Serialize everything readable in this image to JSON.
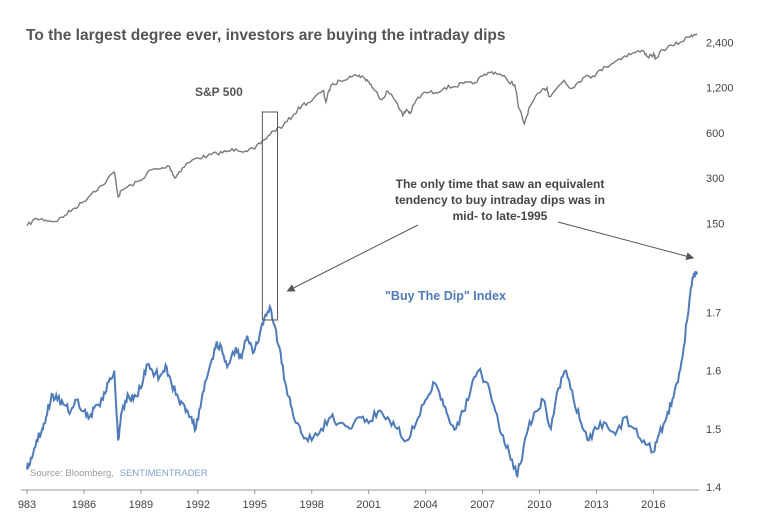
{
  "chart_data": {
    "type": "line",
    "title": "To the largest degree ever, investors are buying the intraday dips",
    "source": "Source: Bloomberg,",
    "source_brand": "SENTIMENTRADER",
    "x_ticks": [
      "983",
      "1986",
      "1989",
      "1992",
      "1995",
      "1998",
      "2001",
      "2004",
      "2007",
      "2010",
      "2013",
      "2016"
    ],
    "x_range": [
      1983,
      2018.3
    ],
    "colors": {
      "sp500": "#7a7a7a",
      "index": "#4f7bb8",
      "axis": "#999999"
    },
    "sp500": {
      "label": "S&P 500",
      "scale": "log",
      "ylim": [
        100,
        2900
      ],
      "ticks": [
        {
          "v": 2400,
          "t": "2,400"
        },
        {
          "v": 1200,
          "t": "1,200"
        },
        {
          "v": 600,
          "t": "600"
        },
        {
          "v": 300,
          "t": "300"
        },
        {
          "v": 150,
          "t": "150"
        }
      ],
      "points": [
        [
          1983.0,
          145
        ],
        [
          1983.5,
          162
        ],
        [
          1984.0,
          158
        ],
        [
          1984.5,
          155
        ],
        [
          1985.0,
          170
        ],
        [
          1985.5,
          190
        ],
        [
          1986.0,
          210
        ],
        [
          1986.5,
          245
        ],
        [
          1987.0,
          270
        ],
        [
          1987.6,
          330
        ],
        [
          1987.8,
          225
        ],
        [
          1988.0,
          250
        ],
        [
          1988.5,
          270
        ],
        [
          1989.0,
          290
        ],
        [
          1989.5,
          340
        ],
        [
          1990.0,
          345
        ],
        [
          1990.5,
          360
        ],
        [
          1990.8,
          300
        ],
        [
          1991.0,
          330
        ],
        [
          1991.5,
          380
        ],
        [
          1992.0,
          410
        ],
        [
          1992.5,
          420
        ],
        [
          1993.0,
          440
        ],
        [
          1993.5,
          450
        ],
        [
          1994.0,
          470
        ],
        [
          1994.5,
          455
        ],
        [
          1995.0,
          470
        ],
        [
          1995.5,
          540
        ],
        [
          1996.0,
          620
        ],
        [
          1996.5,
          670
        ],
        [
          1997.0,
          780
        ],
        [
          1997.5,
          920
        ],
        [
          1998.0,
          980
        ],
        [
          1998.6,
          1150
        ],
        [
          1998.75,
          960
        ],
        [
          1999.0,
          1230
        ],
        [
          1999.5,
          1330
        ],
        [
          2000.0,
          1430
        ],
        [
          2000.5,
          1450
        ],
        [
          2000.8,
          1380
        ],
        [
          2001.0,
          1320
        ],
        [
          2001.3,
          1150
        ],
        [
          2001.7,
          1000
        ],
        [
          2002.0,
          1140
        ],
        [
          2002.5,
          950
        ],
        [
          2002.8,
          780
        ],
        [
          2003.0,
          860
        ],
        [
          2003.2,
          810
        ],
        [
          2003.5,
          990
        ],
        [
          2004.0,
          1120
        ],
        [
          2004.5,
          1110
        ],
        [
          2005.0,
          1200
        ],
        [
          2005.5,
          1220
        ],
        [
          2006.0,
          1280
        ],
        [
          2006.5,
          1270
        ],
        [
          2007.0,
          1430
        ],
        [
          2007.5,
          1530
        ],
        [
          2007.9,
          1480
        ],
        [
          2008.3,
          1350
        ],
        [
          2008.7,
          1250
        ],
        [
          2008.9,
          880
        ],
        [
          2009.2,
          690
        ],
        [
          2009.5,
          900
        ],
        [
          2010.0,
          1110
        ],
        [
          2010.4,
          1200
        ],
        [
          2010.5,
          1050
        ],
        [
          2010.9,
          1180
        ],
        [
          2011.3,
          1340
        ],
        [
          2011.6,
          1190
        ],
        [
          2011.9,
          1250
        ],
        [
          2012.3,
          1400
        ],
        [
          2012.8,
          1430
        ],
        [
          2013.0,
          1490
        ],
        [
          2013.5,
          1650
        ],
        [
          2014.0,
          1800
        ],
        [
          2014.5,
          1950
        ],
        [
          2015.0,
          2050
        ],
        [
          2015.5,
          2100
        ],
        [
          2015.7,
          1920
        ],
        [
          2016.0,
          1990
        ],
        [
          2016.1,
          1860
        ],
        [
          2016.5,
          2150
        ],
        [
          2017.0,
          2280
        ],
        [
          2017.5,
          2430
        ],
        [
          2018.0,
          2680
        ],
        [
          2018.3,
          2750
        ]
      ]
    },
    "buy_the_dip": {
      "label": "\"Buy The Dip\" Index",
      "ylim": [
        1.4,
        1.79
      ],
      "ticks": [
        {
          "v": 1.7,
          "t": "1.7"
        },
        {
          "v": 1.6,
          "t": "1.6"
        },
        {
          "v": 1.5,
          "t": "1.5"
        },
        {
          "v": 1.4,
          "t": "1.4"
        }
      ],
      "points": [
        [
          1983.0,
          1.43
        ],
        [
          1983.2,
          1.45
        ],
        [
          1983.5,
          1.48
        ],
        [
          1983.8,
          1.5
        ],
        [
          1984.0,
          1.52
        ],
        [
          1984.3,
          1.56
        ],
        [
          1984.6,
          1.55
        ],
        [
          1985.0,
          1.54
        ],
        [
          1985.3,
          1.53
        ],
        [
          1985.6,
          1.55
        ],
        [
          1986.0,
          1.53
        ],
        [
          1986.3,
          1.52
        ],
        [
          1986.6,
          1.54
        ],
        [
          1987.0,
          1.55
        ],
        [
          1987.3,
          1.58
        ],
        [
          1987.6,
          1.6
        ],
        [
          1987.8,
          1.48
        ],
        [
          1988.0,
          1.53
        ],
        [
          1988.3,
          1.56
        ],
        [
          1988.6,
          1.55
        ],
        [
          1989.0,
          1.57
        ],
        [
          1989.3,
          1.61
        ],
        [
          1989.6,
          1.6
        ],
        [
          1990.0,
          1.59
        ],
        [
          1990.3,
          1.61
        ],
        [
          1990.6,
          1.58
        ],
        [
          1991.0,
          1.55
        ],
        [
          1991.3,
          1.54
        ],
        [
          1991.6,
          1.52
        ],
        [
          1991.9,
          1.5
        ],
        [
          1992.2,
          1.55
        ],
        [
          1992.5,
          1.59
        ],
        [
          1992.8,
          1.62
        ],
        [
          1993.0,
          1.65
        ],
        [
          1993.3,
          1.63
        ],
        [
          1993.6,
          1.61
        ],
        [
          1994.0,
          1.64
        ],
        [
          1994.3,
          1.62
        ],
        [
          1994.6,
          1.66
        ],
        [
          1994.9,
          1.63
        ],
        [
          1995.2,
          1.65
        ],
        [
          1995.5,
          1.69
        ],
        [
          1995.8,
          1.71
        ],
        [
          1996.0,
          1.68
        ],
        [
          1996.3,
          1.64
        ],
        [
          1996.6,
          1.58
        ],
        [
          1996.9,
          1.54
        ],
        [
          1997.2,
          1.51
        ],
        [
          1997.5,
          1.49
        ],
        [
          1998.0,
          1.48
        ],
        [
          1998.5,
          1.5
        ],
        [
          1999.0,
          1.52
        ],
        [
          1999.5,
          1.51
        ],
        [
          2000.0,
          1.5
        ],
        [
          2000.5,
          1.52
        ],
        [
          2001.0,
          1.51
        ],
        [
          2001.5,
          1.53
        ],
        [
          2002.0,
          1.52
        ],
        [
          2002.5,
          1.5
        ],
        [
          2003.0,
          1.48
        ],
        [
          2003.5,
          1.51
        ],
        [
          2004.0,
          1.55
        ],
        [
          2004.4,
          1.58
        ],
        [
          2004.8,
          1.55
        ],
        [
          2005.2,
          1.52
        ],
        [
          2005.6,
          1.5
        ],
        [
          2006.0,
          1.53
        ],
        [
          2006.4,
          1.57
        ],
        [
          2006.8,
          1.6
        ],
        [
          2007.2,
          1.58
        ],
        [
          2007.6,
          1.54
        ],
        [
          2008.0,
          1.49
        ],
        [
          2008.4,
          1.46
        ],
        [
          2008.8,
          1.42
        ],
        [
          2009.0,
          1.44
        ],
        [
          2009.4,
          1.5
        ],
        [
          2009.8,
          1.53
        ],
        [
          2010.2,
          1.55
        ],
        [
          2010.6,
          1.5
        ],
        [
          2011.0,
          1.57
        ],
        [
          2011.4,
          1.6
        ],
        [
          2011.8,
          1.55
        ],
        [
          2012.2,
          1.51
        ],
        [
          2012.6,
          1.48
        ],
        [
          2013.0,
          1.5
        ],
        [
          2013.5,
          1.51
        ],
        [
          2014.0,
          1.49
        ],
        [
          2014.5,
          1.52
        ],
        [
          2015.0,
          1.5
        ],
        [
          2015.5,
          1.48
        ],
        [
          2016.0,
          1.46
        ],
        [
          2016.3,
          1.49
        ],
        [
          2016.7,
          1.52
        ],
        [
          2017.0,
          1.55
        ],
        [
          2017.3,
          1.58
        ],
        [
          2017.6,
          1.64
        ],
        [
          2017.9,
          1.72
        ],
        [
          2018.1,
          1.76
        ],
        [
          2018.3,
          1.77
        ]
      ]
    },
    "annotation": {
      "lines": [
        "The only time that saw an equivalent",
        "tendency to buy intraday dips was in",
        "mid- to late-1995"
      ]
    },
    "highlight_range": [
      1995.4,
      1996.2
    ]
  }
}
